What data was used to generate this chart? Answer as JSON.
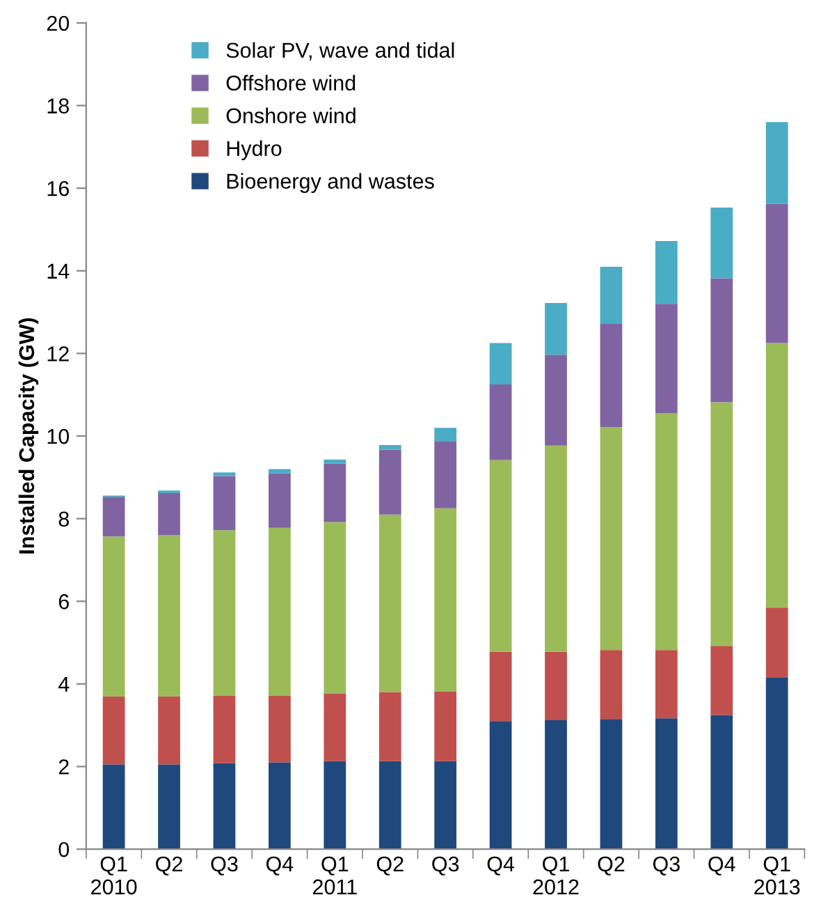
{
  "chart_data": {
    "type": "bar",
    "stacked": true,
    "ylabel": "Installed Capacity (GW)",
    "categories": [
      "Q1\n2010",
      "Q2",
      "Q3",
      "Q4",
      "Q1\n2011",
      "Q2",
      "Q3",
      "Q4",
      "Q1\n2012",
      "Q2",
      "Q3",
      "Q4",
      "Q1\n2013"
    ],
    "series": [
      {
        "name": "Bioenergy and wastes",
        "color": "#1f497d",
        "values": [
          2.05,
          2.05,
          2.08,
          2.1,
          2.13,
          2.13,
          2.13,
          3.1,
          3.12,
          3.15,
          3.17,
          3.25,
          4.15
        ]
      },
      {
        "name": "Hydro",
        "color": "#c0504d",
        "values": [
          1.65,
          1.65,
          1.64,
          1.62,
          1.64,
          1.67,
          1.69,
          1.68,
          1.66,
          1.67,
          1.65,
          1.67,
          1.7
        ]
      },
      {
        "name": "Onshore wind",
        "color": "#9bbb59",
        "values": [
          3.87,
          3.9,
          4.0,
          4.06,
          4.15,
          4.3,
          4.43,
          4.64,
          4.99,
          5.4,
          5.73,
          5.9,
          6.4
        ]
      },
      {
        "name": "Offshore wind",
        "color": "#8064a2",
        "values": [
          0.96,
          1.02,
          1.31,
          1.32,
          1.41,
          1.57,
          1.63,
          1.83,
          2.2,
          2.51,
          2.65,
          3.0,
          3.37
        ]
      },
      {
        "name": "Solar PV, wave and tidal",
        "color": "#4bacc6",
        "values": [
          0.03,
          0.06,
          0.09,
          0.1,
          0.1,
          0.11,
          0.32,
          1.0,
          1.25,
          1.37,
          1.52,
          1.71,
          1.98
        ]
      }
    ],
    "ylim": [
      0,
      20
    ],
    "yticks": [
      0,
      2,
      4,
      6,
      8,
      10,
      12,
      14,
      16,
      18,
      20
    ],
    "grid": false,
    "legend": "top left"
  }
}
